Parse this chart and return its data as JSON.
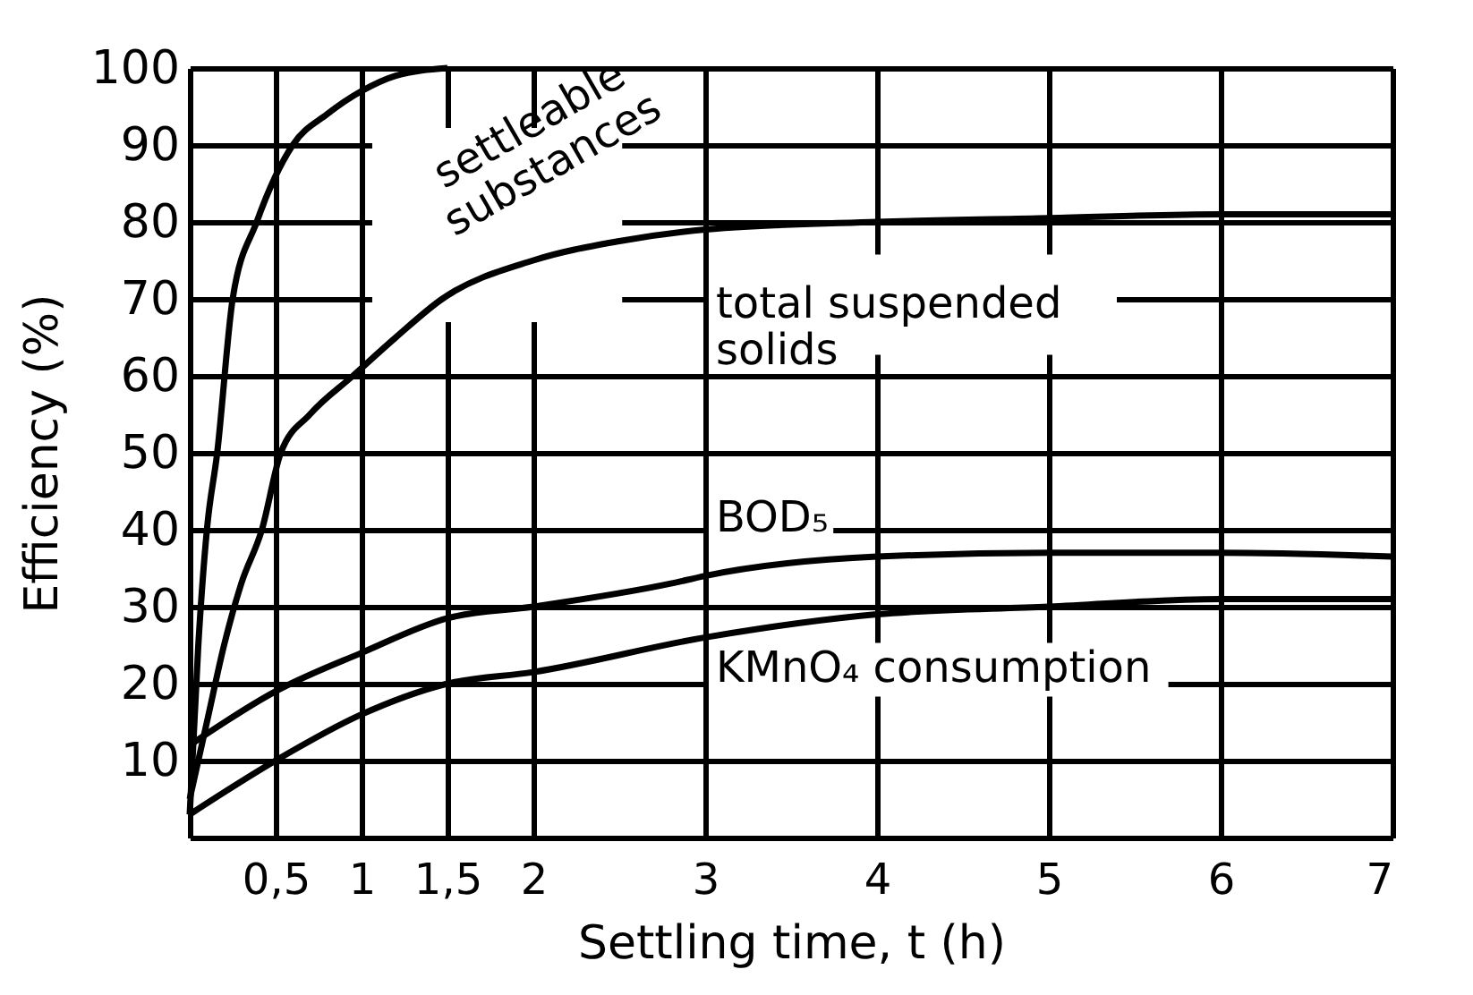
{
  "chart_data": {
    "type": "line",
    "xlabel": "Settling time, t (h)",
    "ylabel": "Efficiency (%)",
    "xlim": [
      0,
      7
    ],
    "ylim": [
      0,
      100
    ],
    "xticks": [
      {
        "value": 0.5,
        "label": "0,5"
      },
      1,
      {
        "value": 1.5,
        "label": "1,5"
      },
      2,
      3,
      4,
      5,
      6,
      7
    ],
    "yticks": [
      10,
      20,
      30,
      40,
      50,
      60,
      70,
      80,
      90,
      100
    ],
    "grid": true,
    "legend": false,
    "marker": "none",
    "line_style": "solid",
    "series": [
      {
        "name": "settleable substances",
        "color": "#000000",
        "x": [
          0,
          0.05,
          0.1,
          0.16,
          0.25,
          0.39,
          0.6,
          0.8,
          1.0,
          1.2,
          1.5
        ],
        "values": [
          3,
          25,
          40,
          50,
          70,
          80,
          90,
          94,
          97,
          99,
          100
        ]
      },
      {
        "name": "total suspended solids",
        "color": "#000000",
        "x": [
          0,
          0.1,
          0.2,
          0.3,
          0.42,
          0.53,
          0.7,
          0.95,
          1.2,
          1.47,
          2,
          2.5,
          3,
          4,
          5,
          6,
          7
        ],
        "values": [
          5,
          15,
          25,
          33,
          40,
          50,
          55,
          60,
          65,
          70,
          75,
          77.5,
          79,
          80,
          80.5,
          81,
          81
        ]
      },
      {
        "name": "BOD₅",
        "color": "#000000",
        "x": [
          0,
          0.5,
          1,
          1.5,
          2,
          2.8,
          3,
          4,
          5,
          6,
          7
        ],
        "values": [
          12,
          19,
          24,
          28.5,
          30,
          33,
          34,
          36.5,
          37,
          37,
          36.5
        ]
      },
      {
        "name": "KMnO₄ consumption",
        "color": "#000000",
        "x": [
          0,
          0.5,
          1,
          1.5,
          2,
          3,
          4,
          5,
          6,
          7
        ],
        "values": [
          3,
          10,
          16,
          20,
          21.5,
          26,
          29,
          30,
          31,
          31
        ]
      }
    ]
  }
}
